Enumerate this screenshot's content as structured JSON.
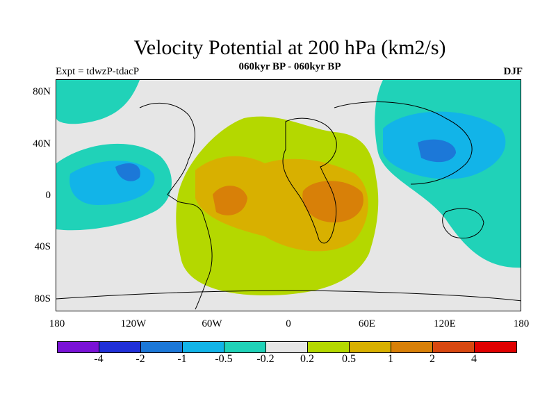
{
  "title": "Velocity Potential at 200 hPa (km2/s)",
  "subtitle": "060kyr BP - 060kyr BP",
  "experiment": "Expt = tdwzP-tdacP",
  "season": "DJF",
  "map": {
    "projection": "cylindrical equidistant",
    "lon_range": [
      -180,
      180
    ],
    "lat_range": [
      -90,
      90
    ],
    "y_ticks": [
      "80N",
      "40N",
      "0",
      "40S",
      "80S"
    ],
    "x_ticks": [
      "180",
      "120W",
      "60W",
      "0",
      "60E",
      "120E",
      "180"
    ],
    "features": [
      {
        "name": "positive center over South America",
        "level": 2
      },
      {
        "name": "positive center over southern Africa",
        "level": 2
      },
      {
        "name": "negative center over East Asia / western Pacific",
        "level": -1
      },
      {
        "name": "negative center over eastern North Pacific",
        "level": -1
      }
    ]
  },
  "colorbar": {
    "colors": [
      "#7a12d6",
      "#2030d8",
      "#1c78d8",
      "#12b4e8",
      "#20d2b8",
      "#e6e6e6",
      "#b4d800",
      "#d8b000",
      "#d88008",
      "#d84810",
      "#e00000"
    ],
    "labels": [
      "-4",
      "-2",
      "-1",
      "-0.5",
      "-0.2",
      "0.2",
      "0.5",
      "1",
      "2",
      "4"
    ]
  }
}
